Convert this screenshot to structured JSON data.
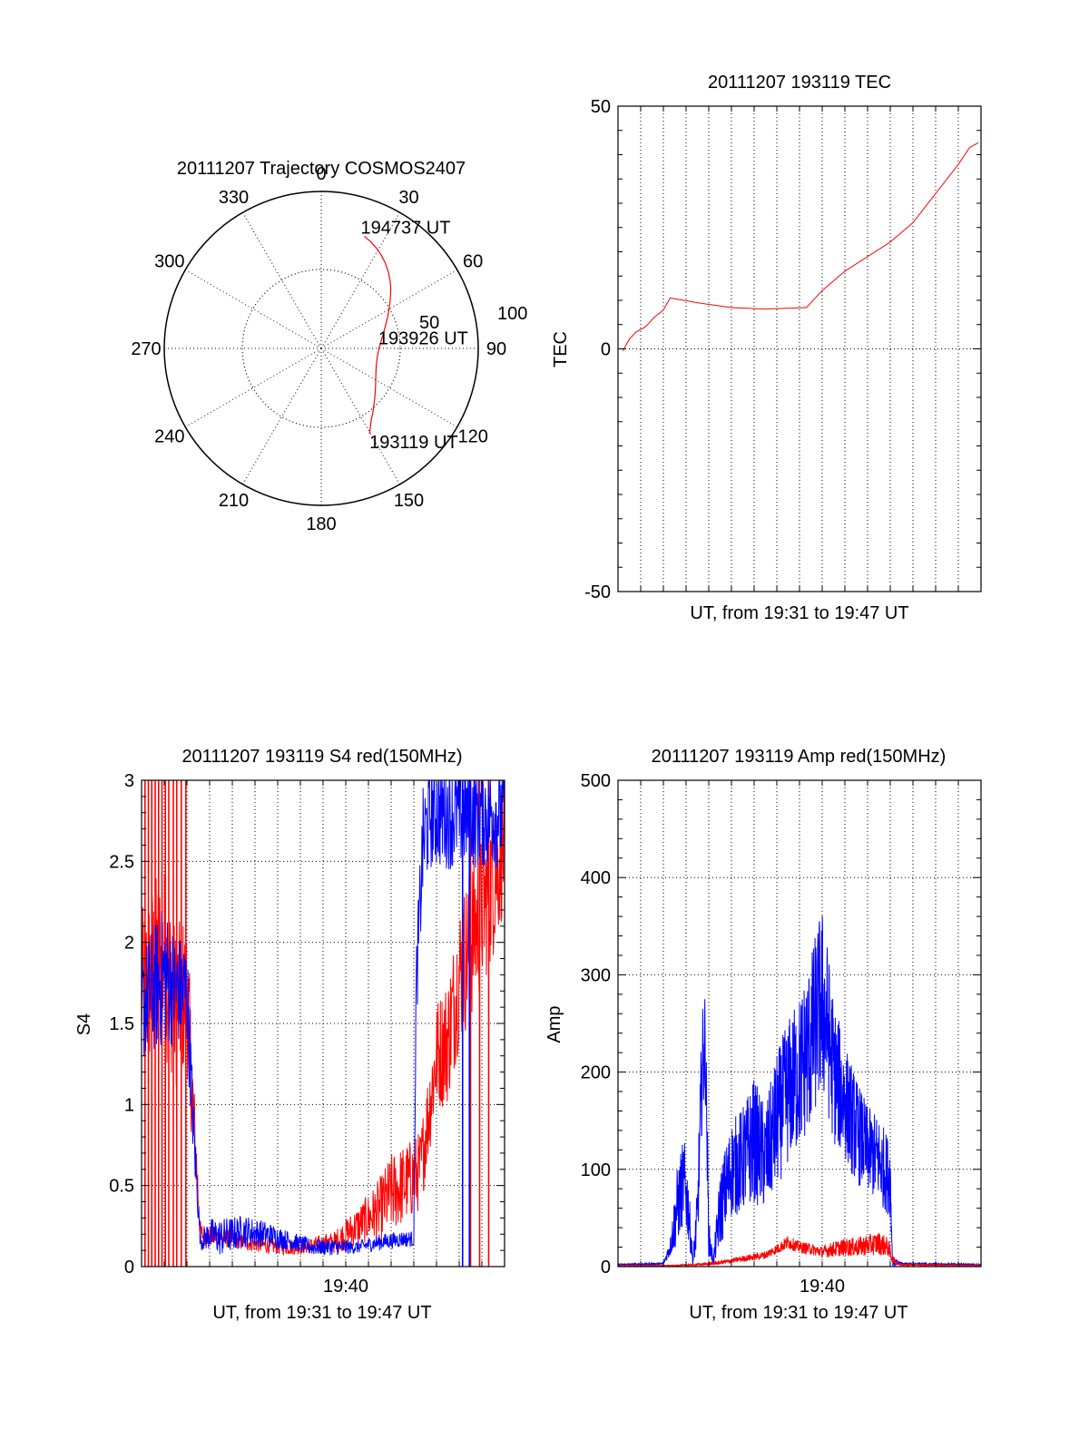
{
  "colors": {
    "red": "#ff0000",
    "blue": "#0000ff",
    "axis": "#000000",
    "grid": "#000000"
  },
  "chart_data": [
    {
      "id": "polar",
      "type": "scatter",
      "projection": "polar",
      "title": "20111207 Trajectory COSMOS2407",
      "azimuth_labels": [
        "0",
        "30",
        "60",
        "90",
        "120",
        "150",
        "180",
        "210",
        "240",
        "270",
        "300",
        "330"
      ],
      "radial_labels": [
        "50",
        "100"
      ],
      "grid": "dotted",
      "trajectory": {
        "azimuth": [
          150.5,
          148,
          145,
          141,
          137,
          133,
          129,
          125,
          121,
          117,
          113,
          109,
          105,
          101,
          97,
          93,
          89,
          85,
          81,
          77,
          73,
          69,
          65,
          61,
          57,
          53,
          49,
          45,
          41,
          37,
          33,
          29,
          25,
          21
        ],
        "elevation_offset": [
          108,
          102,
          96,
          90.5,
          85,
          80.5,
          76.5,
          73,
          70,
          67.5,
          65.5,
          64,
          63,
          62.5,
          62.5,
          63,
          64,
          65.5,
          67.5,
          70,
          73,
          76.5,
          80.5,
          85,
          90,
          95.5,
          101.5,
          107,
          112.5,
          117.5,
          122,
          126,
          129.5,
          132.5
        ]
      },
      "annotations": [
        {
          "text": "194737 UT",
          "at_index": 33
        },
        {
          "text": "193926 UT",
          "at_index": 15
        },
        {
          "text": "193119 UT",
          "at_index": 0
        }
      ]
    },
    {
      "id": "tec",
      "type": "line",
      "title": "20111207 193119 TEC",
      "xlabel": "UT, from 19:31 to 19:47 UT",
      "ylabel": "TEC",
      "xlim": [
        0,
        16
      ],
      "ylim": [
        -50,
        50
      ],
      "yticks": [
        -50,
        0,
        50
      ],
      "xticklabels": [],
      "grid": "dotted",
      "series": [
        {
          "color": "red",
          "x": [
            0.2,
            0.5,
            0.8,
            1.2,
            1.6,
            2.0,
            2.3,
            3.5,
            5.0,
            6.5,
            8.3,
            9.0,
            9.5,
            10.0,
            11.0,
            12.0,
            12.5,
            13.0,
            13.5,
            14.0,
            14.5,
            15.0,
            15.5,
            15.9
          ],
          "y": [
            -0.5,
            2.0,
            3.5,
            4.5,
            6.5,
            8.0,
            10.5,
            9.5,
            8.5,
            8.2,
            8.5,
            12.0,
            14.0,
            16.0,
            19.0,
            22.0,
            24.0,
            26.0,
            29.0,
            32.0,
            35.0,
            38.0,
            41.5,
            42.5
          ]
        }
      ]
    },
    {
      "id": "s4",
      "type": "line",
      "title": "20111207 193119 S4 red(150MHz)",
      "xlabel": "UT, from 19:31 to 19:47 UT",
      "ylabel": "S4",
      "xlim": [
        0,
        16
      ],
      "ylim": [
        0,
        3
      ],
      "yticks": [
        0,
        0.5,
        1,
        1.5,
        2,
        2.5,
        3
      ],
      "yticklabels": [
        "0",
        "0.5",
        "1",
        "1.5",
        "2",
        "2.5",
        "3"
      ],
      "xticks": [
        9
      ],
      "xticklabels": [
        "19:40"
      ],
      "grid": "dotted",
      "series": [
        {
          "color": "red",
          "x": [
            0.0,
            0.5,
            1.0,
            1.5,
            2.0,
            2.3,
            2.6,
            3.5,
            4.5,
            5.5,
            6.5,
            7.5,
            8.5,
            9.0,
            9.5,
            10.0,
            10.5,
            11.0,
            11.5,
            12.0,
            12.3,
            12.7,
            13.0,
            13.5,
            14.0,
            14.5,
            15.0,
            15.5,
            16.0
          ],
          "y": [
            1.7,
            1.8,
            1.9,
            1.6,
            1.7,
            0.9,
            0.2,
            0.18,
            0.15,
            0.13,
            0.12,
            0.13,
            0.15,
            0.2,
            0.25,
            0.3,
            0.35,
            0.45,
            0.5,
            0.55,
            0.6,
            1.0,
            1.3,
            1.4,
            1.8,
            2.0,
            2.2,
            2.4,
            2.6
          ],
          "spread": [
            0.5,
            0.6,
            0.6,
            0.5,
            0.5,
            0.3,
            0.07,
            0.06,
            0.05,
            0.05,
            0.05,
            0.05,
            0.07,
            0.1,
            0.12,
            0.15,
            0.2,
            0.25,
            0.25,
            0.25,
            0.25,
            0.3,
            0.35,
            0.4,
            0.45,
            0.5,
            0.5,
            0.5,
            0.4
          ],
          "spikes_x": [
            0.15,
            0.3,
            0.45,
            0.6,
            0.75,
            0.9,
            1.05,
            1.2,
            1.4,
            1.55,
            1.75,
            1.95,
            14.5,
            14.9,
            15.3
          ],
          "spikes_y": [
            0,
            3
          ]
        },
        {
          "color": "blue",
          "x": [
            0.0,
            0.5,
            1.0,
            1.5,
            2.0,
            2.3,
            2.6,
            3.0,
            3.5,
            4.5,
            5.5,
            6.5,
            7.5,
            8.5,
            9.5,
            10.5,
            11.5,
            12.0,
            12.1,
            12.4,
            12.7,
            13.0,
            13.5,
            14.0,
            14.5,
            15.0,
            15.5,
            16.0
          ],
          "y": [
            1.6,
            1.7,
            1.8,
            1.7,
            1.7,
            0.8,
            0.15,
            0.2,
            0.18,
            0.22,
            0.2,
            0.16,
            0.12,
            0.12,
            0.12,
            0.15,
            0.17,
            0.17,
            1.7,
            2.6,
            2.8,
            2.8,
            2.8,
            2.8,
            2.8,
            2.8,
            2.8,
            2.8
          ],
          "spread": [
            0.35,
            0.4,
            0.45,
            0.35,
            0.35,
            0.2,
            0.05,
            0.1,
            0.12,
            0.1,
            0.08,
            0.06,
            0.05,
            0.05,
            0.04,
            0.05,
            0.05,
            0.05,
            0.25,
            0.35,
            0.35,
            0.35,
            0.35,
            0.35,
            0.35,
            0.35,
            0.35,
            0.35
          ],
          "spikes_x": [
            14.15,
            14.45
          ],
          "spikes_y": [
            0,
            3
          ]
        }
      ]
    },
    {
      "id": "amp",
      "type": "line",
      "title": "20111207 193119 Amp red(150MHz)",
      "xlabel": "UT, from 19:31 to 19:47 UT",
      "ylabel": "Amp",
      "xlim": [
        0,
        16
      ],
      "ylim": [
        0,
        500
      ],
      "yticks": [
        0,
        100,
        200,
        300,
        400,
        500
      ],
      "yticklabels": [
        "0",
        "100",
        "200",
        "300",
        "400",
        "500"
      ],
      "xticks": [
        9
      ],
      "xticklabels": [
        "19:40"
      ],
      "grid": "dotted",
      "series": [
        {
          "color": "blue",
          "x": [
            0.0,
            2.0,
            2.3,
            2.6,
            2.9,
            3.1,
            3.3,
            3.5,
            3.7,
            3.85,
            4.0,
            4.2,
            4.5,
            5.0,
            5.5,
            6.0,
            6.5,
            7.0,
            7.5,
            8.0,
            8.5,
            8.8,
            9.0,
            9.2,
            9.5,
            10.0,
            10.5,
            11.0,
            11.5,
            12.0,
            12.1,
            12.5,
            16.0
          ],
          "y": [
            2,
            3,
            20,
            60,
            90,
            60,
            5,
            50,
            200,
            230,
            30,
            5,
            60,
            100,
            110,
            130,
            110,
            150,
            180,
            200,
            230,
            260,
            270,
            250,
            200,
            170,
            140,
            120,
            110,
            90,
            5,
            3,
            2
          ],
          "spread": [
            1,
            1,
            10,
            40,
            45,
            35,
            5,
            35,
            60,
            60,
            20,
            5,
            40,
            50,
            55,
            65,
            55,
            70,
            75,
            80,
            90,
            95,
            100,
            90,
            75,
            60,
            55,
            45,
            45,
            40,
            5,
            1,
            1
          ]
        },
        {
          "color": "red",
          "x": [
            0.0,
            2.5,
            3.5,
            4.5,
            5.5,
            6.5,
            7.0,
            7.5,
            8.0,
            8.5,
            9.0,
            9.5,
            10.0,
            10.5,
            11.0,
            11.5,
            11.9,
            12.1,
            12.4,
            16.0
          ],
          "y": [
            1,
            1,
            2,
            4,
            8,
            12,
            18,
            25,
            20,
            18,
            15,
            18,
            20,
            20,
            22,
            24,
            20,
            8,
            2,
            1
          ],
          "spread": [
            0.5,
            0.5,
            1,
            2,
            3,
            4,
            5,
            7,
            6,
            6,
            6,
            8,
            9,
            10,
            11,
            12,
            10,
            4,
            1,
            0.5
          ]
        }
      ]
    }
  ]
}
